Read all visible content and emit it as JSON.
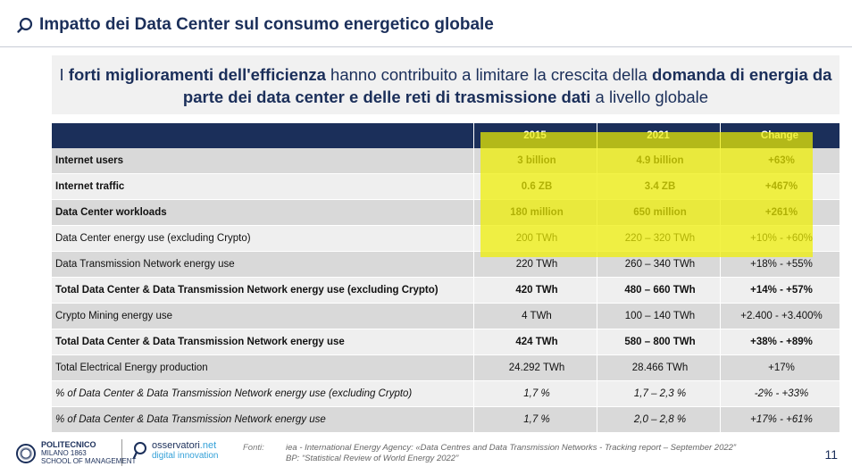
{
  "header": {
    "title": "Impatto dei Data Center sul consumo energetico globale"
  },
  "banner": {
    "p1": "I ",
    "b1": "forti miglioramenti dell'efficienza",
    "p2": " hanno contribuito a limitare la crescita della ",
    "b2": "domanda di energia da parte dei data center e delle reti di trasmissione dati",
    "p3": " a livello globale"
  },
  "table": {
    "headers": [
      "",
      "2015",
      "2021",
      "Change"
    ],
    "rows": [
      {
        "label": "Internet users",
        "v2015": "3 billion",
        "v2021": "4.9 billion",
        "change": "+63%"
      },
      {
        "label": "Internet traffic",
        "v2015": "0.6 ZB",
        "v2021": "3.4 ZB",
        "change": "+467%"
      },
      {
        "label": "Data Center workloads",
        "v2015": "180 million",
        "v2021": "650 million",
        "change": "+261%"
      },
      {
        "label": "Data Center energy use (excluding Crypto)",
        "v2015": "200 TWh",
        "v2021": "220 – 320 TWh",
        "change": "+10% - +60%"
      },
      {
        "label": "Data Transmission Network energy use",
        "v2015": "220 TWh",
        "v2021": "260 – 340 TWh",
        "change": "+18% - +55%"
      },
      {
        "label": "Total Data Center & Data Transmission Network energy use (excluding Crypto)",
        "v2015": "420 TWh",
        "v2021": "480 – 660 TWh",
        "change": "+14% - +57%"
      },
      {
        "label": "Crypto Mining energy use",
        "v2015": "4 TWh",
        "v2021": "100 – 140 TWh",
        "change": "+2.400 - +3.400%"
      },
      {
        "label": "Total Data Center & Data Transmission Network energy use",
        "v2015": "424 TWh",
        "v2021": "580 – 800 TWh",
        "change": "+38% - +89%"
      },
      {
        "label": "Total Electrical Energy production",
        "v2015": "24.292 TWh",
        "v2021": "28.466 TWh",
        "change": "+17%"
      },
      {
        "label": "% of Data Center & Data Transmission Network energy use (excluding Crypto)",
        "v2015": "1,7 %",
        "v2021": "1,7 – 2,3 %",
        "change": "-2% - +33%"
      },
      {
        "label": "% of Data Center & Data Transmission Network energy use",
        "v2015": "1,7 %",
        "v2021": "2,0 – 2,8 %",
        "change": "+17% - +61%"
      }
    ]
  },
  "footer": {
    "polimi_name": "POLITECNICO",
    "polimi_city": "MILANO 1863",
    "polimi_school": "SCHOOL OF MANAGEMENT",
    "oss_name": "osservatori",
    "oss_net": ".net",
    "oss_sub": "digital innovation",
    "fonti_label": "Fonti:",
    "fonte1": "iea - International Energy Agency: «Data Centres and Data Transmission Networks - Tracking report – September 2022”",
    "fonte2": "BP: “Statistical Review of World Energy 2022”",
    "page_number": "11"
  },
  "colors": {
    "navy": "#1b2f5a",
    "highlight": "#eeee00",
    "accent": "#33a0d8"
  }
}
